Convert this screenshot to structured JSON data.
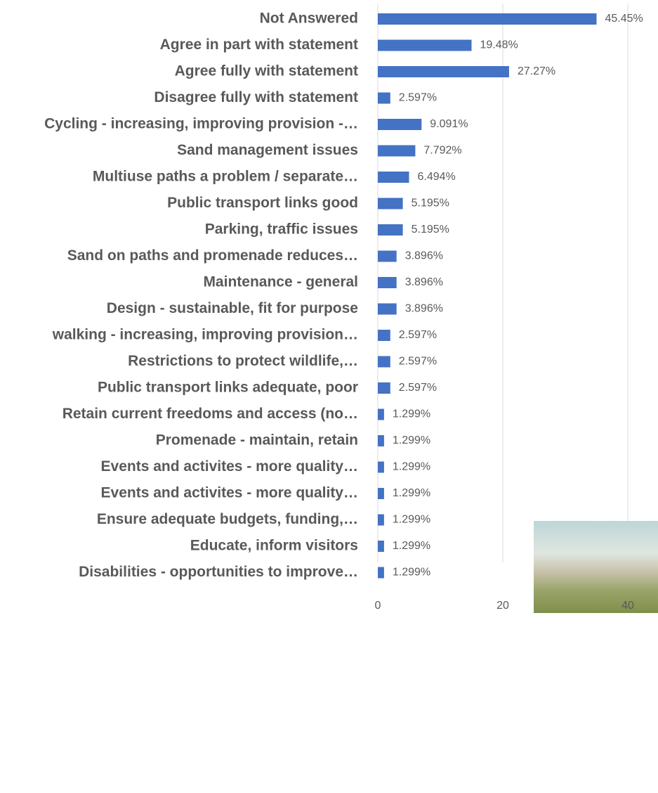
{
  "chart_data": {
    "type": "barh",
    "categories": [
      "Not Answered",
      "Agree in part with statement",
      "Agree fully with statement",
      "Disagree fully with statement",
      "Cycling - increasing, improving provision -…",
      "Sand management issues",
      "Multiuse paths a problem / separate…",
      "Public transport links good",
      "Parking,  traffic issues",
      "Sand on paths and promenade reduces…",
      "Maintenance - general",
      "Design - sustainable, fit for purpose",
      "walking - increasing, improving provision…",
      "Restrictions to protect wildlife,…",
      "Public transport links adequate, poor",
      "Retain current freedoms and access (no…",
      "Promenade - maintain, retain",
      "Events and activites - more quality…",
      "Events and activites - more quality…",
      "Ensure adequate budgets, funding,…",
      "Educate, inform visitors",
      "Disabilities - opportunities to improve…"
    ],
    "values": [
      35,
      15,
      21,
      2,
      7,
      6,
      5,
      4,
      4,
      3,
      3,
      3,
      2,
      2,
      2,
      1,
      1,
      1,
      1,
      1,
      1,
      1
    ],
    "value_labels": [
      "45.45%",
      "19.48%",
      "27.27%",
      "2.597%",
      "9.091%",
      "7.792%",
      "6.494%",
      "5.195%",
      "5.195%",
      "3.896%",
      "3.896%",
      "3.896%",
      "2.597%",
      "2.597%",
      "2.597%",
      "1.299%",
      "1.299%",
      "1.299%",
      "1.299%",
      "1.299%",
      "1.299%",
      "1.299%"
    ],
    "color": "#4472c4",
    "xlim": [
      0,
      40
    ],
    "xticks": [
      0,
      20,
      40
    ],
    "grid": true
  }
}
